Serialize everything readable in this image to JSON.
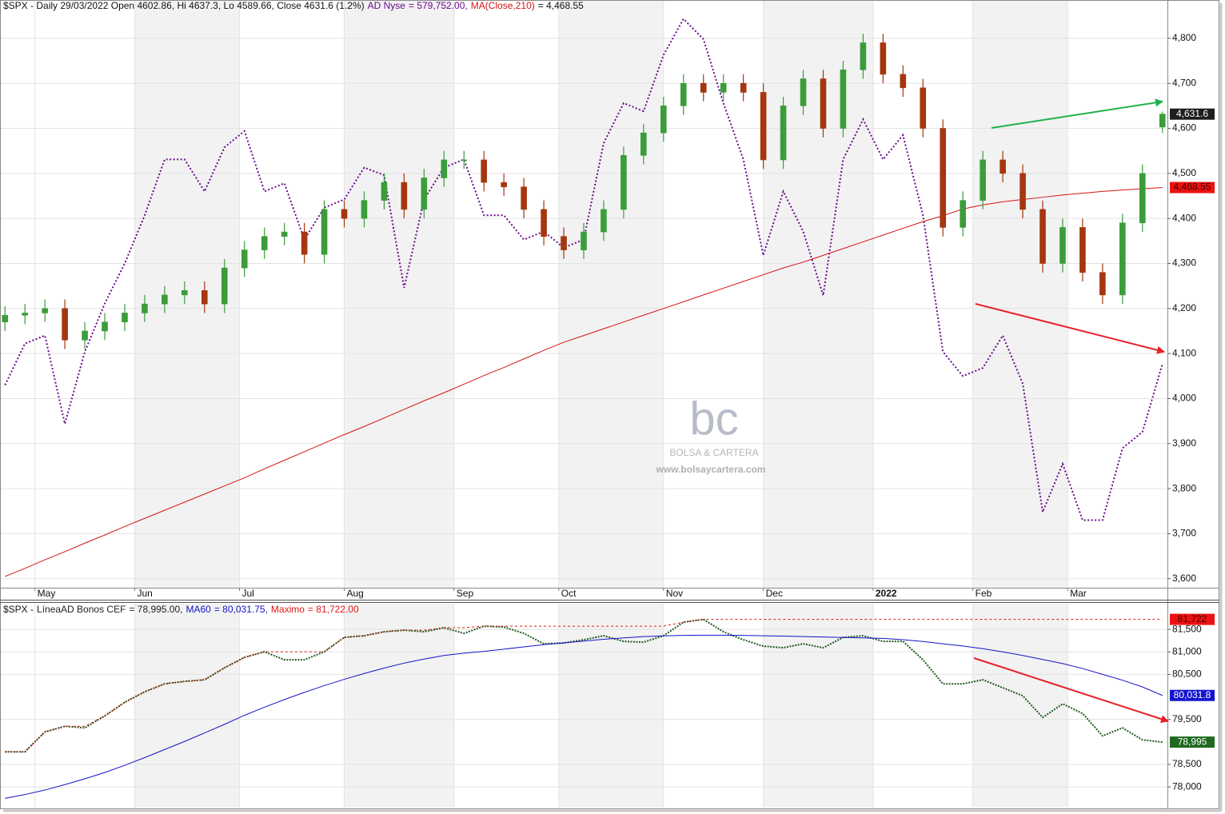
{
  "chart_data": [
    {
      "type": "candlestick",
      "title": "$SPX - Daily 29/03/2022 Open 4602.86, Hi 4637.3, Lo 4589.66, Close 4631.6 (1.2%)",
      "x": [
        0,
        4,
        8,
        12,
        16,
        20,
        24,
        28,
        32,
        36,
        40,
        44,
        48,
        52,
        56,
        60,
        64,
        68,
        72,
        76,
        80,
        84,
        88,
        92,
        96,
        100,
        104,
        108,
        112,
        116,
        120,
        124,
        128,
        132,
        136,
        140,
        144,
        148,
        152,
        156,
        160,
        164,
        168,
        172,
        176,
        180,
        184,
        188,
        192,
        196,
        200,
        204,
        208,
        212,
        216,
        220,
        224,
        228,
        232
      ],
      "xlim": [
        -1,
        233
      ],
      "xticks": [
        {
          "value": 6,
          "label": "May"
        },
        {
          "value": 26,
          "label": "Jun"
        },
        {
          "value": 47,
          "label": "Jul"
        },
        {
          "value": 68,
          "label": "Aug"
        },
        {
          "value": 90,
          "label": "Sep"
        },
        {
          "value": 111,
          "label": "Oct"
        },
        {
          "value": 132,
          "label": "Nov"
        },
        {
          "value": 152,
          "label": "Dec"
        },
        {
          "value": 174,
          "label": "2022",
          "bold": true
        },
        {
          "value": 194,
          "label": "Feb"
        },
        {
          "value": 213,
          "label": "Mar"
        }
      ],
      "ylim": [
        3580,
        4885
      ],
      "yticks": [
        {
          "value": 3600,
          "label": "3,600"
        },
        {
          "value": 3700,
          "label": "3,700"
        },
        {
          "value": 3800,
          "label": "3,800"
        },
        {
          "value": 3900,
          "label": "3,900"
        },
        {
          "value": 4000,
          "label": "4,000"
        },
        {
          "value": 4100,
          "label": "4,100"
        },
        {
          "value": 4200,
          "label": "4,200"
        },
        {
          "value": 4300,
          "label": "4,300"
        },
        {
          "value": 4400,
          "label": "4,400"
        },
        {
          "value": 4500,
          "label": "4,500"
        },
        {
          "value": 4600,
          "label": "4,600"
        },
        {
          "value": 4700,
          "label": "4,700"
        },
        {
          "value": 4800,
          "label": "4,800"
        }
      ],
      "grid": true,
      "open": [
        4170,
        4185,
        4190,
        4200,
        4130,
        4150,
        4170,
        4190,
        4210,
        4230,
        4240,
        4210,
        4290,
        4330,
        4360,
        4370,
        4320,
        4420,
        4400,
        4440,
        4480,
        4420,
        4490,
        4530,
        4530,
        4480,
        4470,
        4420,
        4360,
        4330,
        4370,
        4420,
        4540,
        4590,
        4650,
        4700,
        4680,
        4700,
        4680,
        4530,
        4650,
        4710,
        4600,
        4730,
        4790,
        4720,
        4690,
        4600,
        4380,
        4440,
        4530,
        4500,
        4420,
        4300,
        4380,
        4280,
        4230,
        4390,
        4602.86
      ],
      "high": [
        4205,
        4210,
        4220,
        4220,
        4170,
        4190,
        4210,
        4230,
        4250,
        4260,
        4260,
        4310,
        4350,
        4380,
        4390,
        4390,
        4440,
        4440,
        4460,
        4500,
        4500,
        4510,
        4550,
        4550,
        4550,
        4500,
        4490,
        4440,
        4380,
        4390,
        4440,
        4560,
        4610,
        4670,
        4720,
        4720,
        4720,
        4720,
        4700,
        4670,
        4730,
        4730,
        4750,
        4810,
        4810,
        4740,
        4710,
        4620,
        4460,
        4550,
        4550,
        4520,
        4440,
        4400,
        4400,
        4300,
        4410,
        4520,
        4637.3
      ],
      "low": [
        4150,
        4165,
        4170,
        4110,
        4110,
        4130,
        4150,
        4170,
        4190,
        4210,
        4190,
        4190,
        4270,
        4310,
        4340,
        4300,
        4300,
        4380,
        4380,
        4420,
        4400,
        4400,
        4470,
        4510,
        4460,
        4450,
        4400,
        4340,
        4310,
        4310,
        4350,
        4400,
        4520,
        4570,
        4630,
        4660,
        4660,
        4660,
        4510,
        4510,
        4630,
        4580,
        4580,
        4710,
        4700,
        4670,
        4580,
        4360,
        4360,
        4420,
        4480,
        4400,
        4280,
        4280,
        4260,
        4210,
        4210,
        4370,
        4589.66
      ],
      "close": [
        4185,
        4190,
        4200,
        4130,
        4150,
        4170,
        4190,
        4210,
        4230,
        4240,
        4210,
        4290,
        4330,
        4360,
        4370,
        4320,
        4420,
        4400,
        4440,
        4480,
        4420,
        4490,
        4530,
        4530,
        4480,
        4470,
        4420,
        4360,
        4330,
        4370,
        4420,
        4540,
        4590,
        4650,
        4700,
        4680,
        4700,
        4680,
        4530,
        4650,
        4710,
        4600,
        4730,
        4790,
        4720,
        4690,
        4600,
        4380,
        4440,
        4530,
        4500,
        4420,
        4300,
        4380,
        4280,
        4230,
        4390,
        4500,
        4631.6
      ],
      "close_label": "4,631.6",
      "close_tag_color": "#1e1e1e",
      "up_color": "#3a9d3a",
      "down_color": "#a5360f",
      "series": [
        {
          "name": "AD Nyse",
          "legend_value": "= 579,752.00,",
          "color": "#6b0a8c",
          "dash": "2,2.5",
          "width": 2,
          "values": [
            4030,
            4122,
            4140,
            3944,
            4104,
            4211,
            4300,
            4407,
            4531,
            4531,
            4460,
            4558,
            4594,
            4460,
            4478,
            4353,
            4424,
            4442,
            4513,
            4496,
            4246,
            4442,
            4513,
            4531,
            4407,
            4407,
            4353,
            4371,
            4335,
            4353,
            4567,
            4656,
            4638,
            4763,
            4843,
            4798,
            4656,
            4531,
            4318,
            4460,
            4371,
            4229,
            4531,
            4620,
            4531,
            4585,
            4407,
            4104,
            4050,
            4068,
            4140,
            4033,
            3748,
            3855,
            3730,
            3730,
            3890,
            3926,
            4077
          ]
        },
        {
          "name": "MA(Close,210)",
          "legend_value": "= 4,468.55",
          "color": "#d41414",
          "width": 1,
          "values": [
            3605,
            3623,
            3642,
            3660,
            3679,
            3697,
            3716,
            3734,
            3752,
            3770,
            3788,
            3806,
            3824,
            3844,
            3863,
            3882,
            3901,
            3920,
            3938,
            3957,
            3976,
            3995,
            4013,
            4032,
            4051,
            4069,
            4088,
            4107,
            4125,
            4140,
            4155,
            4170,
            4185,
            4200,
            4215,
            4230,
            4245,
            4260,
            4275,
            4290,
            4303,
            4318,
            4333,
            4348,
            4363,
            4378,
            4393,
            4406,
            4421,
            4430,
            4437,
            4442,
            4447,
            4452,
            4456,
            4460,
            4463,
            4466,
            4468.55
          ],
          "last_value_label": "4,468.55",
          "tag_color": "#ee1111",
          "tag_text_color": "#3a0000"
        }
      ],
      "annotations": [
        "bc",
        "BOLSA & CARTERA",
        "www.bolsaycartera.com"
      ]
    },
    {
      "type": "line",
      "title": "$SPX -",
      "ylim": [
        77540,
        82070
      ],
      "yticks": [
        {
          "value": 78000,
          "label": "78,000"
        },
        {
          "value": 78500,
          "label": "78,500"
        },
        {
          "value": 79500,
          "label": "79,500"
        },
        {
          "value": 80500,
          "label": "80,500"
        },
        {
          "value": 81000,
          "label": "81,000"
        },
        {
          "value": 81500,
          "label": "81,500"
        }
      ],
      "grid": true,
      "series": [
        {
          "name": "LíneaAD Bonos CEF",
          "legend_value": "= 78,995.00,",
          "color": "#1f5a1f",
          "dash": "2,1.5",
          "width": 2,
          "values": [
            78780,
            78780,
            79222,
            79347,
            79311,
            79578,
            79880,
            80112,
            80290,
            80344,
            80380,
            80646,
            80877,
            81002,
            80824,
            80824,
            81002,
            81322,
            81358,
            81447,
            81482,
            81447,
            81536,
            81411,
            81571,
            81553,
            81411,
            81180,
            81198,
            81269,
            81358,
            81233,
            81215,
            81358,
            81660,
            81722,
            81447,
            81269,
            81127,
            81091,
            81180,
            81091,
            81322,
            81358,
            81233,
            81233,
            80824,
            80290,
            80290,
            80380,
            80202,
            80024,
            79543,
            79845,
            79631,
            79133,
            79311,
            79044,
            78995
          ],
          "last_value_label": "78,995",
          "tag_color": "#1f6a1f",
          "tag_text_color": "#ffffff"
        },
        {
          "name": "MA60",
          "legend_value": "= 80,031.75,",
          "color": "#1414c8",
          "width": 1,
          "values": [
            77746,
            77830,
            77930,
            78050,
            78180,
            78320,
            78480,
            78650,
            78830,
            79010,
            79200,
            79390,
            79590,
            79770,
            79940,
            80100,
            80250,
            80390,
            80520,
            80640,
            80750,
            80840,
            80920,
            80970,
            81010,
            81060,
            81110,
            81160,
            81200,
            81240,
            81280,
            81310,
            81340,
            81355,
            81365,
            81370,
            81370,
            81365,
            81358,
            81350,
            81340,
            81330,
            81320,
            81310,
            81300,
            81270,
            81230,
            81180,
            81130,
            81070,
            81000,
            80920,
            80830,
            80740,
            80630,
            80500,
            80370,
            80220,
            80031.75
          ],
          "last_value_label": "80,031.8",
          "tag_color": "#1414d0",
          "tag_text_color": "#ffffff"
        },
        {
          "name": "Maximo",
          "legend_value": "= 81,722.00",
          "color": "#e01818",
          "dash": "3,3",
          "width": 1,
          "values": [
            78780,
            78780,
            79222,
            79347,
            79347,
            79578,
            79880,
            80112,
            80290,
            80344,
            80380,
            80646,
            80877,
            81002,
            81002,
            81002,
            81002,
            81322,
            81358,
            81447,
            81482,
            81482,
            81536,
            81536,
            81571,
            81571,
            81571,
            81571,
            81571,
            81571,
            81571,
            81571,
            81571,
            81571,
            81660,
            81722,
            81722,
            81722,
            81722,
            81722,
            81722,
            81722,
            81722,
            81722,
            81722,
            81722,
            81722,
            81722,
            81722,
            81722,
            81722,
            81722,
            81722,
            81722,
            81722,
            81722,
            81722,
            81722,
            81722
          ],
          "last_value_label": "81,722",
          "tag_color": "#ee1111",
          "tag_text_color": "#3a0000"
        }
      ]
    }
  ]
}
